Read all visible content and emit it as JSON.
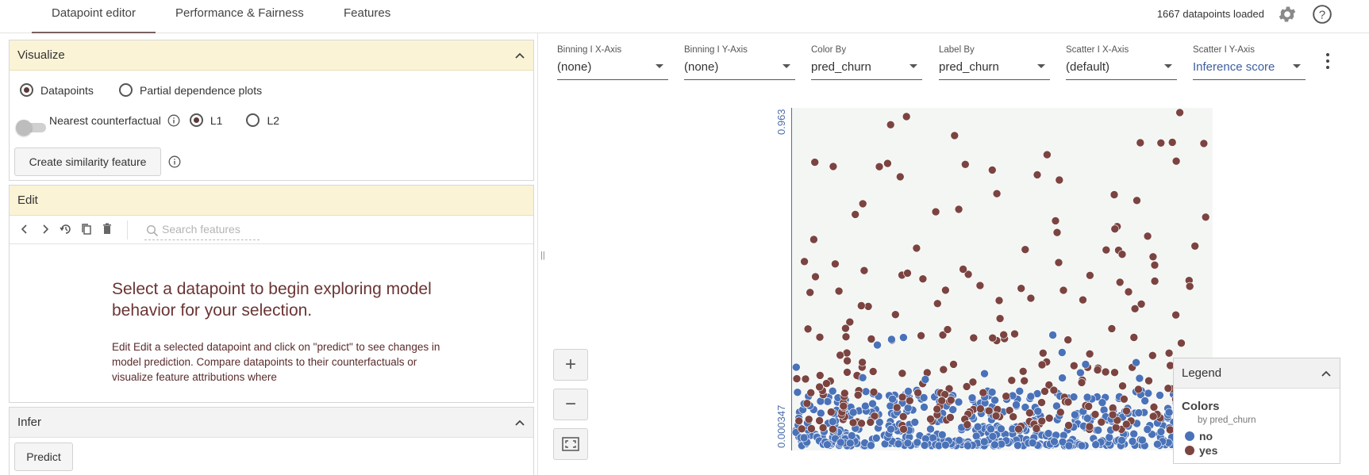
{
  "topnav": {
    "tabs": [
      {
        "label": "Datapoint editor",
        "active": true
      },
      {
        "label": "Performance & Fairness",
        "active": false
      },
      {
        "label": "Features",
        "active": false
      }
    ],
    "status": "1667 datapoints loaded",
    "icons": [
      "gear-icon",
      "help-icon"
    ]
  },
  "visualize": {
    "title": "Visualize",
    "radio_datapoints": "Datapoints",
    "radio_pdp": "Partial dependence plots",
    "selected_mode": "Datapoints",
    "counterfactual_label": "Nearest counterfactual",
    "counterfactual_enabled": false,
    "radio_l1": "L1",
    "radio_l2": "L2",
    "selected_distance": "L1",
    "similarity_button": "Create similarity feature"
  },
  "edit": {
    "title": "Edit",
    "search_placeholder": "Search features",
    "empty_title": "Select a datapoint to begin exploring model behavior for your selection.",
    "empty_body": "Edit Edit a selected datapoint and click on \"predict\" to see changes in model prediction. Compare datapoints to their counterfactuals or visualize feature attributions where"
  },
  "infer": {
    "title": "Infer",
    "predict_button": "Predict"
  },
  "controls": [
    {
      "label": "Binning I X-Axis",
      "value": "(none)"
    },
    {
      "label": "Binning I Y-Axis",
      "value": "(none)"
    },
    {
      "label": "Color By",
      "value": "pred_churn"
    },
    {
      "label": "Label By",
      "value": "pred_churn"
    },
    {
      "label": "Scatter I X-Axis",
      "value": "(default)"
    },
    {
      "label": "Scatter I Y-Axis",
      "value": "Inference score"
    }
  ],
  "plot": {
    "y_max_label": "0.963",
    "y_min_label": "0.000347",
    "colors": {
      "no": "#4a72b8",
      "yes": "#7b4440"
    }
  },
  "legend": {
    "title": "Legend",
    "section": "Colors",
    "subtitle": "by pred_churn",
    "items": [
      {
        "label": "no",
        "color": "#4a72b8"
      },
      {
        "label": "yes",
        "color": "#7b4440"
      }
    ]
  }
}
